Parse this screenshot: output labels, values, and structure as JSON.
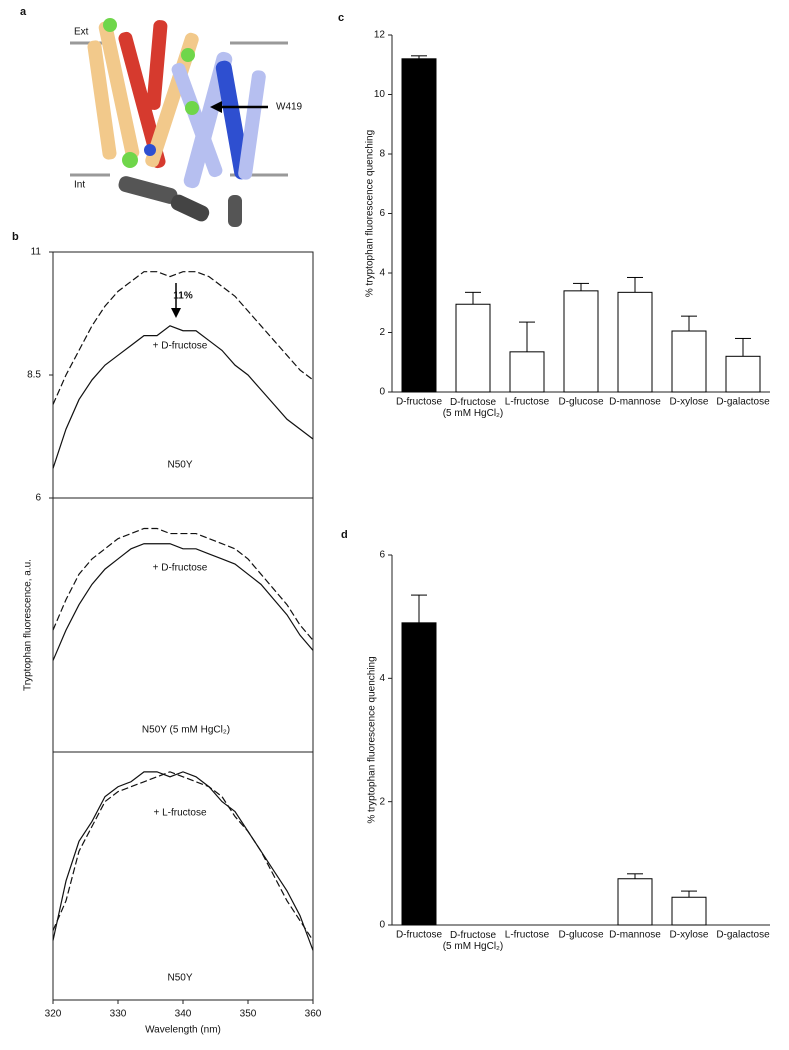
{
  "panel_labels": [
    "a",
    "b",
    "c",
    "d"
  ],
  "structure": {
    "labels": [
      "Ext",
      "Int",
      "W419"
    ]
  },
  "chart_data": [
    {
      "type": "line",
      "x": [
        320,
        322,
        324,
        326,
        328,
        330,
        332,
        334,
        336,
        338,
        340,
        342,
        344,
        346,
        348,
        350,
        352,
        354,
        356,
        358,
        360
      ],
      "ylim": [
        6,
        11
      ],
      "yticks": [
        6,
        8.5,
        11
      ],
      "series": [
        {
          "color": "#111111",
          "dash": true,
          "values": [
            7.9,
            8.5,
            9.0,
            9.5,
            9.9,
            10.2,
            10.4,
            10.6,
            10.6,
            10.5,
            10.6,
            10.6,
            10.5,
            10.3,
            10.1,
            9.8,
            9.5,
            9.2,
            8.9,
            8.6,
            8.4
          ]
        },
        {
          "color": "#111111",
          "dash": false,
          "values": [
            6.6,
            7.4,
            8.0,
            8.4,
            8.7,
            8.9,
            9.1,
            9.3,
            9.3,
            9.5,
            9.4,
            9.4,
            9.2,
            9.0,
            8.7,
            8.5,
            8.2,
            7.9,
            7.6,
            7.4,
            7.2
          ]
        }
      ],
      "annotations": [
        "11%",
        "+ D-fructose",
        "N50Y"
      ]
    },
    {
      "type": "line",
      "x": [
        320,
        322,
        324,
        326,
        328,
        330,
        332,
        334,
        336,
        338,
        340,
        342,
        344,
        346,
        348,
        350,
        352,
        354,
        356,
        358,
        360
      ],
      "ylim": [
        6,
        11
      ],
      "ylabel": "Tryptophan fluorescence, a.u.",
      "series": [
        {
          "color": "#111111",
          "dash": true,
          "values": [
            8.4,
            9.0,
            9.5,
            9.8,
            10.0,
            10.2,
            10.3,
            10.4,
            10.4,
            10.3,
            10.3,
            10.3,
            10.2,
            10.1,
            10.0,
            9.8,
            9.5,
            9.2,
            8.9,
            8.5,
            8.2
          ]
        },
        {
          "color": "#111111",
          "dash": false,
          "values": [
            7.8,
            8.4,
            8.9,
            9.3,
            9.6,
            9.8,
            10.0,
            10.1,
            10.1,
            10.1,
            10.0,
            10.0,
            9.9,
            9.8,
            9.7,
            9.5,
            9.3,
            9.0,
            8.7,
            8.3,
            8.0
          ]
        }
      ],
      "annotations": [
        "+ D-fructose",
        "N50Y (5  mM HgCl₂)"
      ]
    },
    {
      "type": "line",
      "x": [
        320,
        322,
        324,
        326,
        328,
        330,
        332,
        334,
        336,
        338,
        340,
        342,
        344,
        346,
        348,
        350,
        352,
        354,
        356,
        358,
        360
      ],
      "ylim": [
        6,
        11
      ],
      "xlim": [
        320,
        360
      ],
      "xticks": [
        320,
        330,
        340,
        350,
        360
      ],
      "xlabel": "Wavelength (nm)",
      "series": [
        {
          "color": "#111111",
          "dash": true,
          "values": [
            7.4,
            8.0,
            9.0,
            9.5,
            10.0,
            10.2,
            10.3,
            10.4,
            10.5,
            10.6,
            10.5,
            10.4,
            10.3,
            10.1,
            9.7,
            9.4,
            9.0,
            8.5,
            8.0,
            7.6,
            7.2
          ]
        },
        {
          "color": "#111111",
          "dash": false,
          "values": [
            7.2,
            8.4,
            9.2,
            9.6,
            10.1,
            10.3,
            10.4,
            10.6,
            10.6,
            10.5,
            10.6,
            10.5,
            10.3,
            10.0,
            9.8,
            9.4,
            9.0,
            8.6,
            8.2,
            7.7,
            7.0
          ]
        }
      ],
      "annotations": [
        "+ L-fructose",
        "N50Y"
      ]
    },
    {
      "type": "bar",
      "categories": [
        "D-fructose",
        "D-fructose (5 mM HgCl₂)",
        "L-fructose",
        "D-glucose",
        "D-mannose",
        "D-xylose",
        "D-galactose"
      ],
      "values": [
        11.2,
        2.95,
        1.35,
        3.4,
        3.35,
        2.05,
        1.2
      ],
      "errors": [
        0.1,
        0.4,
        1.0,
        0.25,
        0.5,
        0.5,
        0.6
      ],
      "colors": [
        "#000000",
        "#ffffff",
        "#ffffff",
        "#ffffff",
        "#ffffff",
        "#ffffff",
        "#ffffff"
      ],
      "ylim": [
        0,
        12
      ],
      "yticks": [
        0,
        2,
        4,
        6,
        8,
        10,
        12
      ],
      "ylabel": "% tryptophan fluorescence quenching"
    },
    {
      "type": "bar",
      "categories": [
        "D-fructose",
        "D-fructose (5 mM HgCl₂)",
        "L-fructose",
        "D-glucose",
        "D-mannose",
        "D-xylose",
        "D-galactose"
      ],
      "values": [
        4.9,
        0,
        0,
        0,
        0.75,
        0.45,
        0
      ],
      "errors": [
        0.45,
        0,
        0,
        0,
        0.08,
        0.1,
        0
      ],
      "colors": [
        "#000000",
        "#ffffff",
        "#ffffff",
        "#ffffff",
        "#ffffff",
        "#ffffff",
        "#ffffff"
      ],
      "ylim": [
        0,
        6
      ],
      "yticks": [
        0,
        2,
        4,
        6
      ],
      "ylabel": "% tryptophan fluorescence quenching"
    }
  ]
}
